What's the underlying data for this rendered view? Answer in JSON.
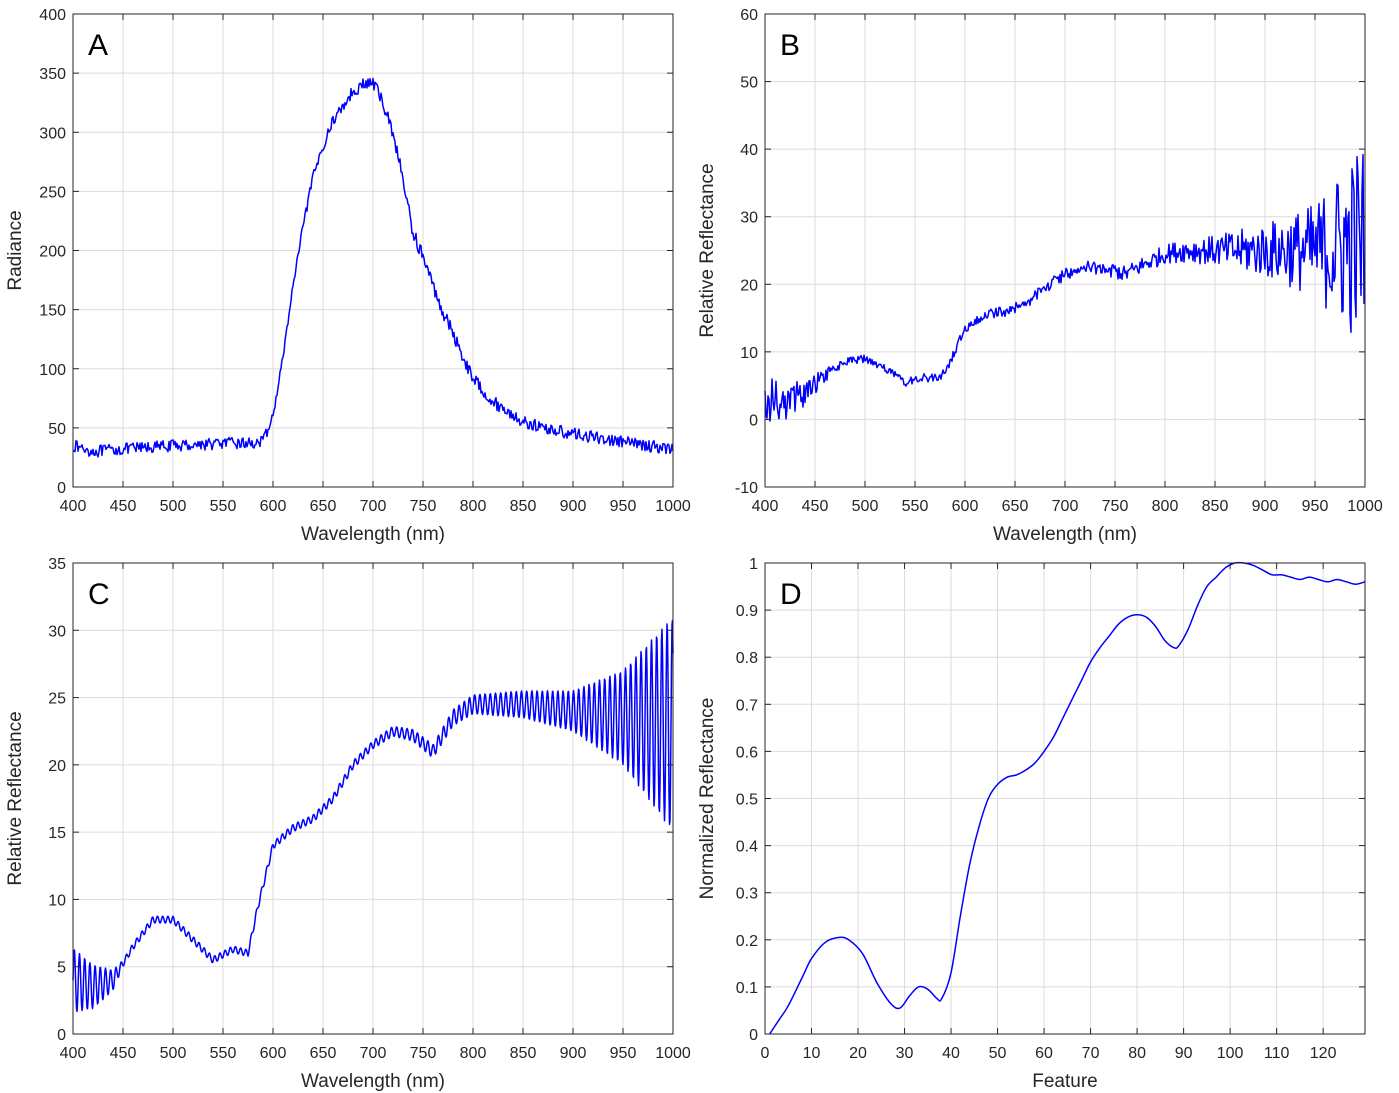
{
  "colors": {
    "series": "#0000ff",
    "grid": "#dcdcdc",
    "axis": "#262626"
  },
  "chart_data": [
    {
      "type": "line",
      "panel_label": "A",
      "xlabel": "Wavelength (nm)",
      "ylabel": "Radiance",
      "xlim": [
        400,
        1000
      ],
      "ylim": [
        0,
        400
      ],
      "xticks": [
        400,
        450,
        500,
        550,
        600,
        650,
        700,
        750,
        800,
        850,
        900,
        950,
        1000
      ],
      "yticks": [
        0,
        50,
        100,
        150,
        200,
        250,
        300,
        350,
        400
      ],
      "grid": true,
      "noise": [
        [
          400,
          5
        ],
        [
          590,
          5
        ],
        [
          600,
          3
        ],
        [
          650,
          4
        ],
        [
          700,
          6
        ],
        [
          750,
          6
        ],
        [
          850,
          5
        ],
        [
          1000,
          5
        ]
      ],
      "series": [
        {
          "x": [
            400,
            420,
            450,
            500,
            550,
            575,
            590,
            600,
            610,
            620,
            630,
            640,
            650,
            660,
            670,
            680,
            690,
            700,
            710,
            720,
            730,
            740,
            750,
            760,
            770,
            780,
            790,
            800,
            820,
            850,
            870,
            900,
            950,
            1000
          ],
          "y": [
            35,
            30,
            32,
            35,
            37,
            37,
            38,
            60,
            110,
            170,
            220,
            262,
            288,
            310,
            322,
            335,
            340,
            342,
            325,
            300,
            260,
            215,
            195,
            170,
            148,
            130,
            110,
            92,
            72,
            55,
            50,
            45,
            38,
            32
          ]
        }
      ]
    },
    {
      "type": "line",
      "panel_label": "B",
      "xlabel": "Wavelength (nm)",
      "ylabel": "Relative Reflectance",
      "xlim": [
        400,
        1000
      ],
      "ylim": [
        -10,
        60
      ],
      "xticks": [
        400,
        450,
        500,
        550,
        600,
        650,
        700,
        750,
        800,
        850,
        900,
        950,
        1000
      ],
      "yticks": [
        -10,
        0,
        10,
        20,
        30,
        40,
        50,
        60
      ],
      "grid": true,
      "noise": [
        [
          400,
          3.5
        ],
        [
          440,
          2
        ],
        [
          470,
          0.6
        ],
        [
          580,
          0.6
        ],
        [
          700,
          0.9
        ],
        [
          800,
          1.4
        ],
        [
          850,
          2.2
        ],
        [
          900,
          4
        ],
        [
          950,
          7
        ],
        [
          1000,
          16
        ]
      ],
      "series": [
        {
          "x": [
            400,
            420,
            440,
            460,
            480,
            500,
            520,
            540,
            560,
            575,
            585,
            600,
            620,
            640,
            660,
            680,
            700,
            720,
            740,
            760,
            780,
            800,
            820,
            850,
            900,
            950,
            1000
          ],
          "y": [
            3,
            2.5,
            4,
            6.5,
            8.5,
            9,
            7.5,
            5.5,
            6.2,
            6,
            8.5,
            13.5,
            15.5,
            16,
            17,
            19.5,
            21.5,
            22.5,
            22.5,
            21.5,
            23,
            24.5,
            25,
            25,
            25,
            25,
            26
          ]
        }
      ]
    },
    {
      "type": "line",
      "panel_label": "C",
      "xlabel": "Wavelength (nm)",
      "ylabel": "Relative Reflectance",
      "xlim": [
        400,
        1000
      ],
      "ylim": [
        0,
        35
      ],
      "xticks": [
        400,
        450,
        500,
        550,
        600,
        650,
        700,
        750,
        800,
        850,
        900,
        950,
        1000
      ],
      "yticks": [
        0,
        5,
        10,
        15,
        20,
        25,
        30,
        35
      ],
      "grid": true,
      "oscillation": [
        [
          400,
          2.4
        ],
        [
          430,
          1.2
        ],
        [
          450,
          0.25
        ],
        [
          570,
          0.25
        ],
        [
          700,
          0.3
        ],
        [
          760,
          0.5
        ],
        [
          800,
          0.7
        ],
        [
          850,
          1
        ],
        [
          900,
          1.5
        ],
        [
          950,
          3.5
        ],
        [
          1000,
          8
        ]
      ],
      "series": [
        {
          "x": [
            400,
            420,
            440,
            460,
            480,
            500,
            520,
            540,
            560,
            575,
            585,
            600,
            620,
            640,
            660,
            680,
            700,
            720,
            740,
            760,
            780,
            800,
            820,
            850,
            900,
            950,
            1000
          ],
          "y": [
            4,
            3.5,
            4,
            6.5,
            8.5,
            8.5,
            7,
            5.5,
            6.3,
            6,
            9.5,
            14,
            15.3,
            16,
            17.5,
            20,
            21.5,
            22.5,
            22.2,
            21,
            23.5,
            24.5,
            24.5,
            24.5,
            24,
            23.5,
            23
          ]
        }
      ]
    },
    {
      "type": "line",
      "panel_label": "D",
      "xlabel": "Feature",
      "ylabel": "Normalized Reflectance",
      "xlim": [
        0,
        129
      ],
      "ylim": [
        0,
        1
      ],
      "xticks": [
        0,
        10,
        20,
        30,
        40,
        50,
        60,
        70,
        80,
        90,
        100,
        110,
        120
      ],
      "yticks": [
        0,
        0.1,
        0.2,
        0.3,
        0.4,
        0.5,
        0.6,
        0.7,
        0.8,
        0.9,
        1
      ],
      "grid": true,
      "series": [
        {
          "x": [
            1,
            3,
            5,
            8,
            10,
            13,
            16,
            18,
            21,
            24,
            27,
            29,
            31,
            33,
            35,
            37,
            38,
            40,
            42,
            44,
            46,
            48,
            50,
            52,
            54,
            56,
            58,
            60,
            62,
            64,
            66,
            68,
            70,
            72,
            74,
            76,
            78,
            80,
            82,
            84,
            86,
            88,
            89,
            91,
            93,
            95,
            97,
            99,
            101,
            103,
            105,
            107,
            109,
            111,
            113,
            115,
            117,
            119,
            121,
            123,
            125,
            127,
            129
          ],
          "y": [
            0,
            0.03,
            0.06,
            0.12,
            0.16,
            0.195,
            0.205,
            0.2,
            0.17,
            0.11,
            0.065,
            0.055,
            0.08,
            0.1,
            0.095,
            0.075,
            0.075,
            0.13,
            0.25,
            0.36,
            0.44,
            0.5,
            0.53,
            0.545,
            0.55,
            0.56,
            0.575,
            0.6,
            0.63,
            0.67,
            0.71,
            0.75,
            0.79,
            0.82,
            0.845,
            0.87,
            0.885,
            0.89,
            0.885,
            0.865,
            0.835,
            0.82,
            0.825,
            0.86,
            0.91,
            0.95,
            0.97,
            0.99,
            1,
            1,
            0.995,
            0.985,
            0.975,
            0.975,
            0.97,
            0.965,
            0.97,
            0.965,
            0.96,
            0.965,
            0.96,
            0.955,
            0.96
          ]
        }
      ]
    }
  ]
}
